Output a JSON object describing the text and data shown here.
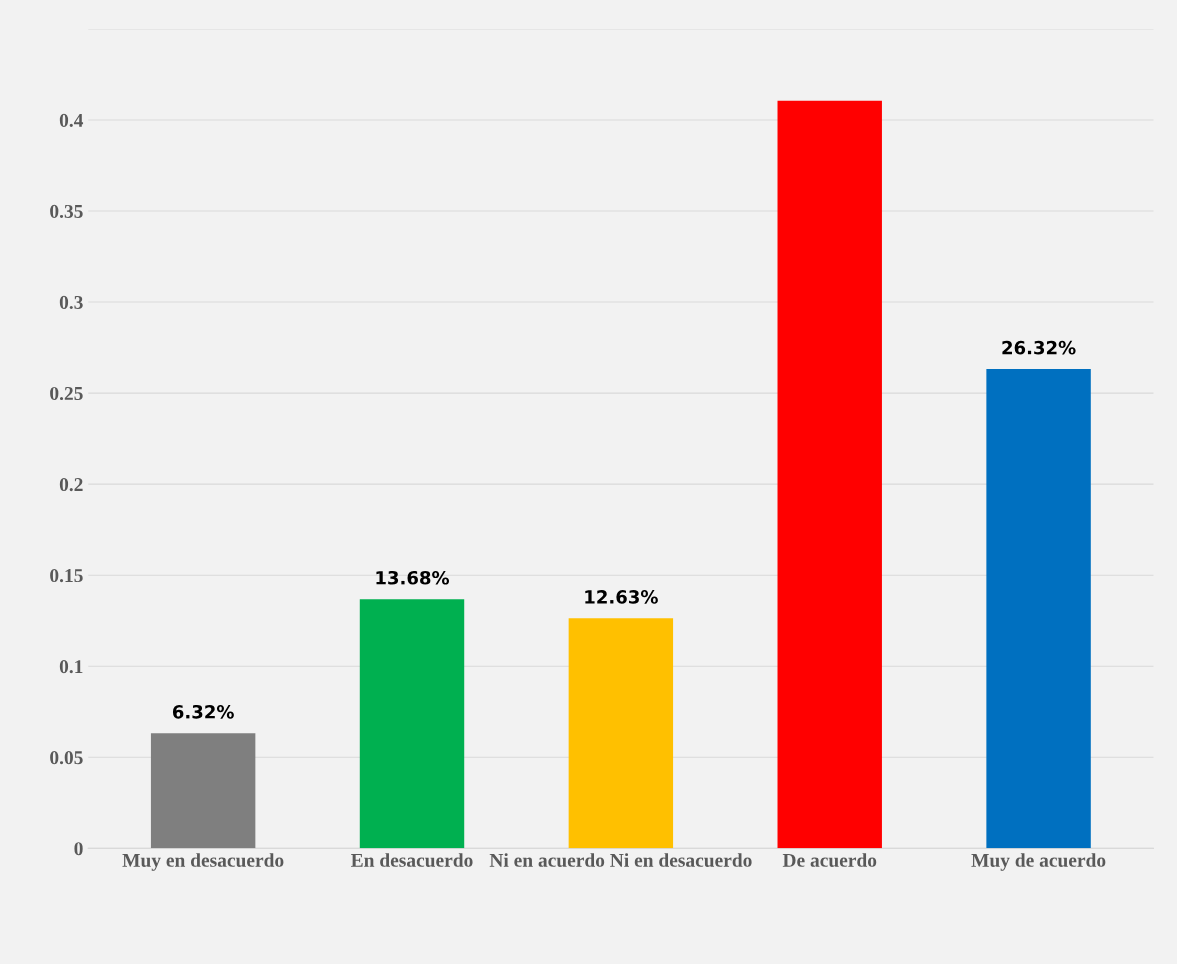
{
  "chart_data": {
    "type": "bar",
    "categories": [
      "Muy en desacuerdo",
      "En desacuerdo",
      "Ni en acuerdo Ni en desacuerdo",
      "De acuerdo",
      "Muy de acuerdo"
    ],
    "values": [
      0.0632,
      0.1368,
      0.1263,
      0.4105,
      0.2632
    ],
    "colors": [
      "#7f7f7f",
      "#00b050",
      "#ffc000",
      "#ff0000",
      "#0070c0"
    ],
    "value_labels": [
      "6.32%",
      "13.68%",
      "12.63%",
      null,
      "26.32%"
    ],
    "ylim": [
      0,
      0.45
    ],
    "yticks": [
      0,
      0.05,
      0.1,
      0.15,
      0.2,
      0.25,
      0.3,
      0.35,
      0.4,
      {
        "value": 0.45,
        "label": null
      }
    ],
    "grid": "y"
  }
}
